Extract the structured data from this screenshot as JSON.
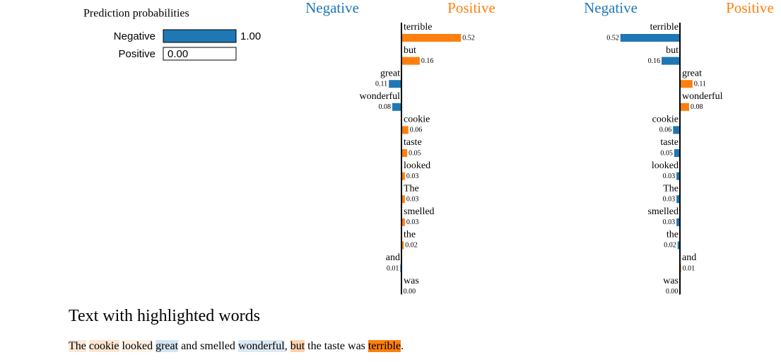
{
  "chart_data": [
    {
      "type": "hbar",
      "title": "Prediction probabilities",
      "categories": [
        "Negative",
        "Positive"
      ],
      "values": [
        1.0,
        0.0
      ],
      "value_labels": [
        "1.00",
        "0.00"
      ],
      "xlim": [
        0,
        1
      ],
      "colors": [
        "#1f77b4",
        "#ff7f0e"
      ]
    },
    {
      "type": "diverging",
      "class_labels": [
        "Negative",
        "Positive"
      ],
      "class_colors": [
        "#1f77b4",
        "#ff7f0e"
      ],
      "categories": [
        "terrible",
        "but",
        "great",
        "wonderful",
        "cookie",
        "taste",
        "looked",
        "The",
        "smelled",
        "the",
        "and",
        "was"
      ],
      "values": [
        0.52,
        0.16,
        -0.11,
        -0.08,
        0.06,
        0.05,
        0.03,
        0.03,
        0.03,
        0.02,
        -0.01,
        0.004
      ],
      "value_labels": [
        "0.52",
        "0.16",
        "0.11",
        "0.08",
        "0.06",
        "0.05",
        "0.03",
        "0.03",
        "0.03",
        "0.02",
        "0.01",
        "0.00"
      ]
    },
    {
      "type": "diverging",
      "class_labels": [
        "Negative",
        "Positive"
      ],
      "class_colors": [
        "#1f77b4",
        "#ff7f0e"
      ],
      "categories": [
        "terrible",
        "but",
        "great",
        "wonderful",
        "cookie",
        "taste",
        "looked",
        "The",
        "smelled",
        "the",
        "and",
        "was"
      ],
      "values": [
        -0.52,
        -0.16,
        0.11,
        0.08,
        -0.06,
        -0.05,
        -0.03,
        -0.03,
        -0.03,
        -0.02,
        0.01,
        -0.004
      ],
      "value_labels": [
        "0.52",
        "0.16",
        "0.11",
        "0.08",
        "0.06",
        "0.05",
        "0.03",
        "0.03",
        "0.03",
        "0.02",
        "0.01",
        "0.00"
      ]
    }
  ],
  "text": {
    "title": "Text with highlighted words",
    "segments": [
      {
        "text": "The",
        "highlight": "#fde8d6"
      },
      {
        "text": " "
      },
      {
        "text": "cookie",
        "highlight": "#fde5d0"
      },
      {
        "text": " "
      },
      {
        "text": "looked",
        "highlight": "#fdf0e4"
      },
      {
        "text": " "
      },
      {
        "text": "great",
        "highlight": "#d3e4f1"
      },
      {
        "text": " and smelled "
      },
      {
        "text": "wonderful",
        "highlight": "#dce9f4"
      },
      {
        "text": ", "
      },
      {
        "text": "but",
        "highlight": "#fcd2ad"
      },
      {
        "text": " the taste was "
      },
      {
        "text": "terrible",
        "highlight": "#ff7f0e"
      },
      {
        "text": "."
      }
    ]
  }
}
